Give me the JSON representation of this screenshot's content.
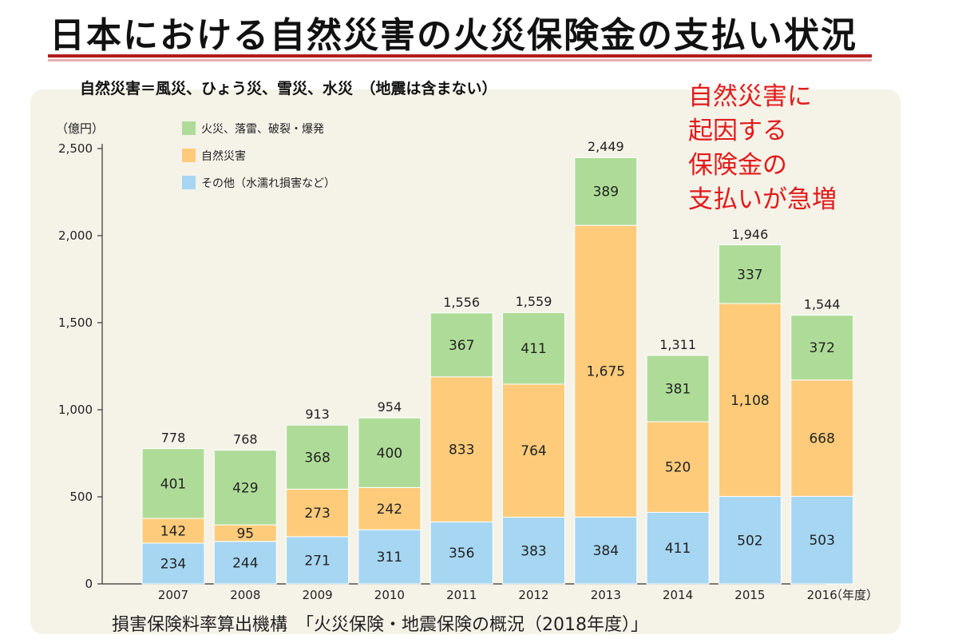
{
  "page": {
    "title": "日本における自然災害の火災保険金の支払い状況",
    "subtitle": "自然災害＝風災、ひょう災、雪災、水災　（地震は含まない）",
    "callout": [
      "自然災害に",
      "起因する",
      "保険金の",
      "支払いが急増"
    ],
    "source": "損害保険料率算出機構　「火災保険・地震保険の概況（2018年度）」",
    "colors": {
      "accent_red": "#e21b1b",
      "title_rule": "#b11b1b",
      "panel_bg": "#f5f2e8"
    }
  },
  "chart_data": {
    "type": "bar",
    "stacked": true,
    "ylabel": "（億円）",
    "xlabel": "（年度）",
    "ylim": [
      0,
      2500
    ],
    "yticks": [
      "0",
      "500",
      "1,000",
      "1,500",
      "2,000",
      "2,500"
    ],
    "ytick_values": [
      0,
      500,
      1000,
      1500,
      2000,
      2500
    ],
    "categories": [
      "2007",
      "2008",
      "2009",
      "2010",
      "2011",
      "2012",
      "2013",
      "2014",
      "2015",
      "2016"
    ],
    "series": [
      {
        "name": "その他（水濡れ損害など）",
        "color": "#a6d6f2",
        "values": [
          234,
          244,
          271,
          311,
          356,
          383,
          384,
          411,
          502,
          503
        ]
      },
      {
        "name": "自然災害",
        "color": "#fdcb7a",
        "values": [
          142,
          95,
          273,
          242,
          833,
          764,
          1675,
          520,
          1108,
          668
        ]
      },
      {
        "name": "火災、落雷、破裂・爆発",
        "color": "#aedc98",
        "values": [
          401,
          429,
          368,
          400,
          367,
          411,
          389,
          381,
          337,
          372
        ]
      }
    ],
    "segment_labels": [
      [
        "234",
        "244",
        "271",
        "311",
        "356",
        "383",
        "384",
        "411",
        "502",
        "503"
      ],
      [
        "142",
        "95",
        "273",
        "242",
        "833",
        "764",
        "1,675",
        "520",
        "1,108",
        "668"
      ],
      [
        "401",
        "429",
        "368",
        "400",
        "367",
        "411",
        "389",
        "381",
        "337",
        "372"
      ]
    ],
    "totals": [
      778,
      768,
      913,
      954,
      1556,
      1559,
      2449,
      1311,
      1946,
      1544
    ],
    "total_labels": [
      "778",
      "768",
      "913",
      "954",
      "1,556",
      "1,559",
      "2,449",
      "1,311",
      "1,946",
      "1,544"
    ],
    "legend": {
      "position": "top-left",
      "entries": [
        "火災、落雷、破裂・爆発",
        "自然災害",
        "その他（水濡れ損害など）"
      ],
      "colors": [
        "#aedc98",
        "#fdcb7a",
        "#a6d6f2"
      ]
    },
    "grid": false
  }
}
